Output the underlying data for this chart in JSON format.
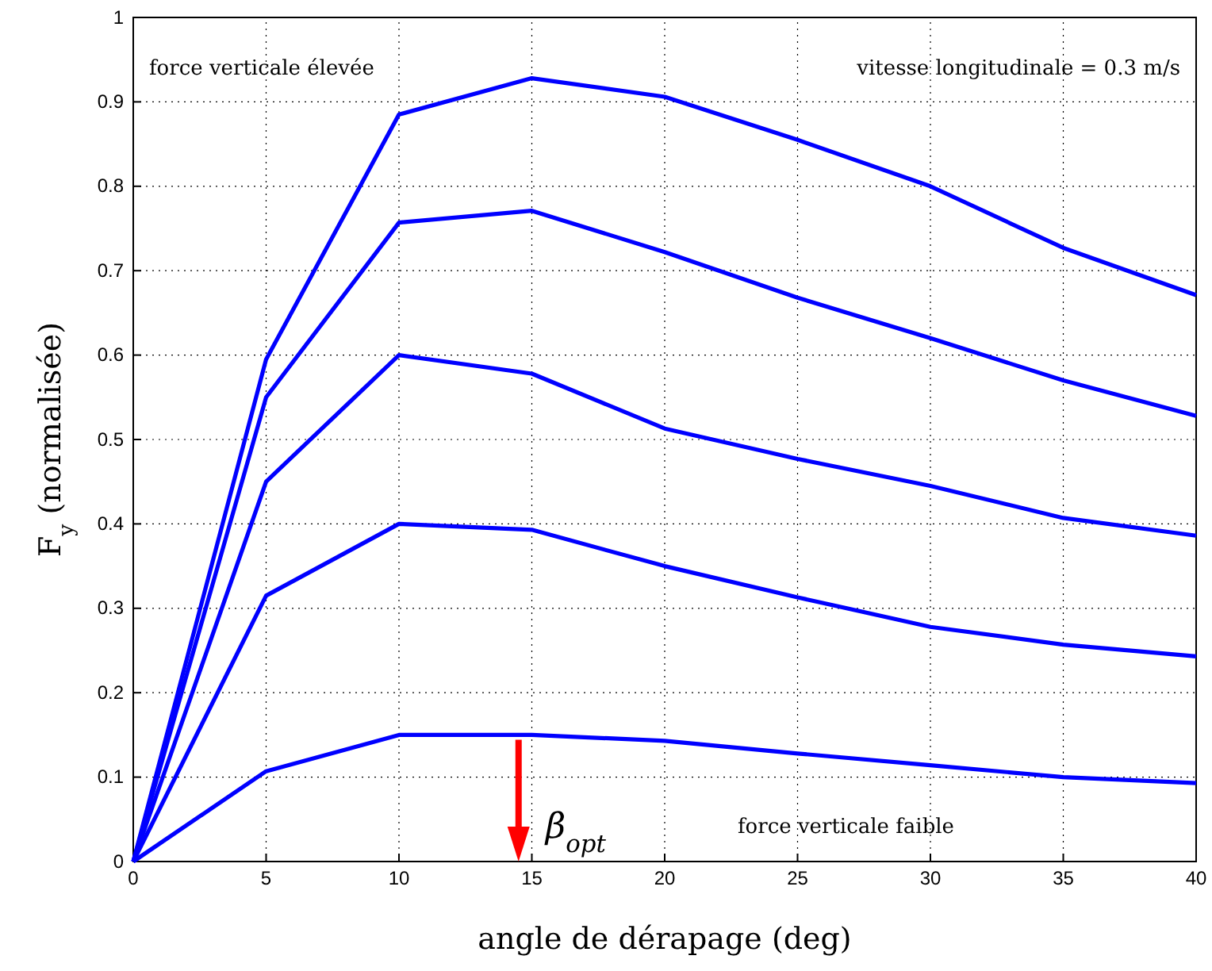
{
  "chart_data": {
    "type": "line",
    "xlabel": "angle de dérapage (deg)",
    "ylabel": "F$_{y}$ (normalisée)",
    "x": [
      0,
      5,
      10,
      15,
      20,
      25,
      30,
      35,
      40
    ],
    "series": [
      {
        "color": "#0000ff",
        "values": [
          0,
          0.595,
          0.885,
          0.928,
          0.906,
          0.855,
          0.8,
          0.727,
          0.671
        ]
      },
      {
        "color": "#0000ff",
        "values": [
          0,
          0.55,
          0.757,
          0.771,
          0.722,
          0.668,
          0.62,
          0.57,
          0.528
        ]
      },
      {
        "color": "#0000ff",
        "values": [
          0,
          0.45,
          0.6,
          0.578,
          0.513,
          0.477,
          0.445,
          0.407,
          0.386
        ]
      },
      {
        "color": "#0000ff",
        "values": [
          0,
          0.315,
          0.4,
          0.393,
          0.35,
          0.313,
          0.278,
          0.257,
          0.243
        ]
      },
      {
        "color": "#0000ff",
        "values": [
          0,
          0.107,
          0.15,
          0.15,
          0.143,
          0.128,
          0.114,
          0.1,
          0.093
        ]
      }
    ],
    "xlim": [
      0,
      40
    ],
    "xticks": [
      0,
      5,
      10,
      15,
      20,
      25,
      30,
      35,
      40
    ],
    "ylim": [
      0,
      1
    ],
    "yticks": [
      0,
      0.1,
      0.2,
      0.3,
      0.4,
      0.5,
      0.6,
      0.7,
      0.8,
      0.9,
      1
    ],
    "grid": true,
    "marker": "none",
    "line_style": "solid",
    "annotations": [
      "force verticale élevée",
      "vitesse longitudinale = 0.3 m/s",
      "force verticale faible",
      {
        "text": "β$_{opt}$",
        "x": 14.5,
        "y": 0.15
      }
    ]
  }
}
